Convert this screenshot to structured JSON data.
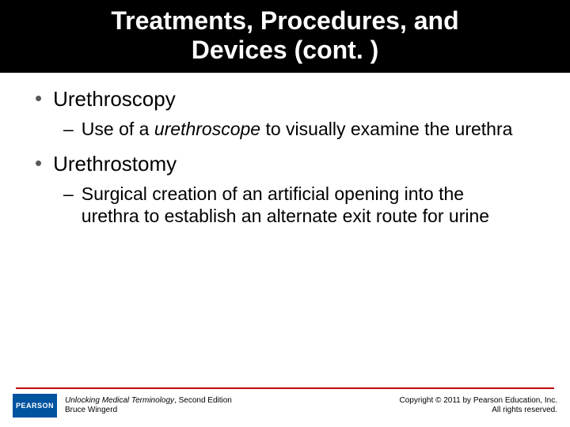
{
  "title_line1": "Treatments, Procedures, and",
  "title_line2": "Devices (cont. )",
  "items": [
    {
      "term": "Urethroscopy",
      "def_pre": "Use of a ",
      "def_italic": "urethroscope",
      "def_post": " to visually examine the urethra"
    },
    {
      "term": "Urethrostomy",
      "def_pre": "Surgical creation of an artificial opening into the urethra to establish an alternate exit route for urine",
      "def_italic": "",
      "def_post": ""
    }
  ],
  "footer": {
    "logo_text": "PEARSON",
    "book_title": "Unlocking Medical Terminology",
    "book_edition": ", Second Edition",
    "author": "Bruce Wingerd",
    "copyright_line1": "Copyright © 2011 by Pearson Education, Inc.",
    "copyright_line2": "All rights reserved."
  },
  "colors": {
    "title_bg": "#000000",
    "title_text": "#ffffff",
    "bullet_dot": "#595959",
    "body_text": "#000000",
    "footer_line": "#c00000",
    "pearson_bg": "#00539f"
  }
}
